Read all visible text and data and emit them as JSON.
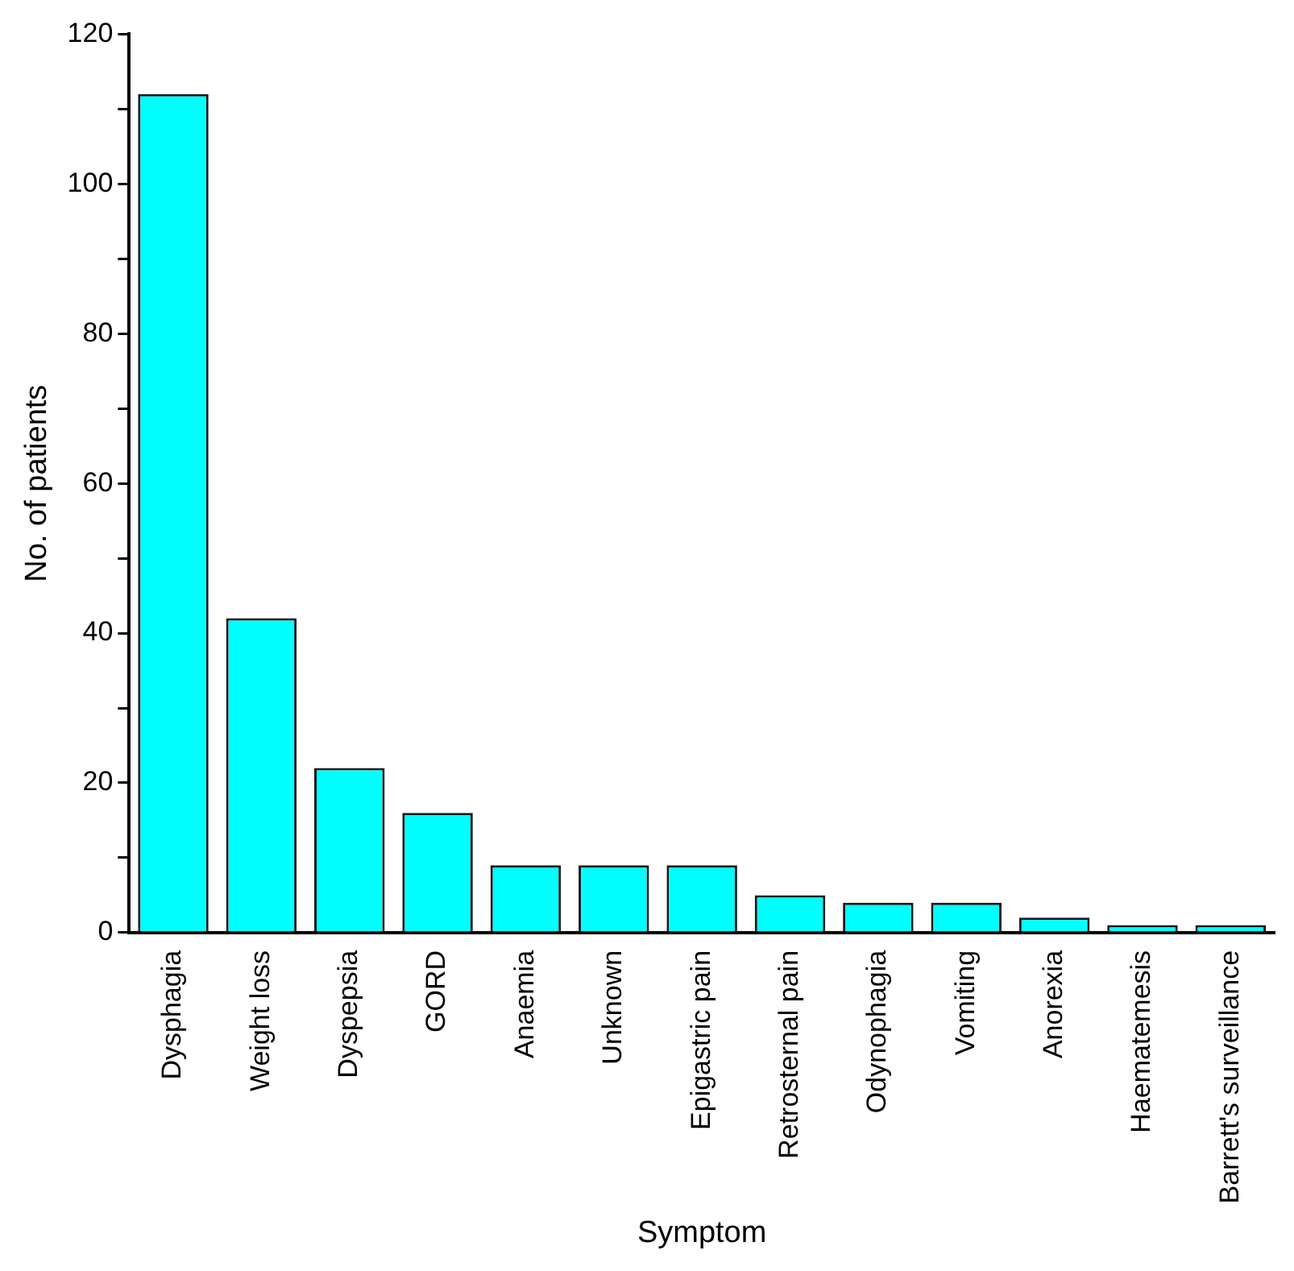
{
  "chart_data": {
    "type": "bar",
    "xlabel": "Symptom",
    "ylabel": "No. of patients",
    "categories": [
      "Dysphagia",
      "Weight loss",
      "Dyspepsia",
      "GORD",
      "Anaemia",
      "Unknown",
      "Epigastric pain",
      "Retrosternal pain",
      "Odynophagia",
      "Vomiting",
      "Anorexia",
      "Haematemesis",
      "Barrett's surveillance"
    ],
    "values": [
      112,
      42,
      22,
      16,
      9,
      9,
      9,
      5,
      4,
      4,
      2,
      1,
      1
    ],
    "color": "#00ffff",
    "ylim": [
      0,
      120
    ],
    "yticks": [
      0,
      {
        "value": 10,
        "label": null
      },
      20,
      {
        "value": 30,
        "label": null
      },
      40,
      {
        "value": 50,
        "label": null
      },
      60,
      {
        "value": 70,
        "label": null
      },
      80,
      {
        "value": 90,
        "label": null
      },
      100,
      {
        "value": 110,
        "label": null
      },
      120
    ],
    "grid": false,
    "legend": false
  }
}
